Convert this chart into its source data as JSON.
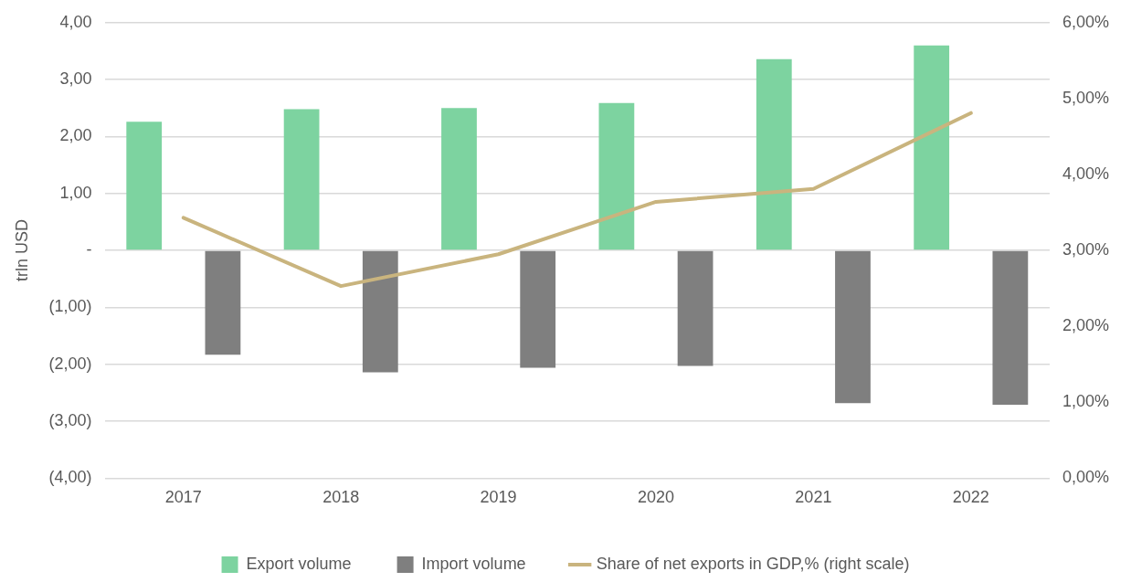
{
  "chart_data": {
    "type": "bar",
    "ylabel": "trln USD",
    "categories": [
      "2017",
      "2018",
      "2019",
      "2020",
      "2021",
      "2022"
    ],
    "series": [
      {
        "name": "Export volume",
        "color": "#7dd3a0",
        "values": [
          2.26,
          2.48,
          2.5,
          2.59,
          3.36,
          3.6
        ]
      },
      {
        "name": "Import volume",
        "color": "#7f7f7f",
        "values": [
          -1.83,
          -2.14,
          -2.06,
          -2.03,
          -2.68,
          -2.71
        ]
      },
      {
        "name": "Share of net exports in GDP,% (right scale)",
        "type": "line",
        "axis": "y2",
        "color": "#c9b47e",
        "values": [
          3.43,
          2.53,
          2.95,
          3.64,
          3.81,
          4.81
        ]
      }
    ],
    "ylim": [
      -4,
      4
    ],
    "yticks": [
      {
        "value": -4,
        "label": "(4,00)"
      },
      {
        "value": -3,
        "label": "(3,00)"
      },
      {
        "value": -2,
        "label": "(2,00)"
      },
      {
        "value": -1,
        "label": "(1,00)"
      },
      {
        "value": 0,
        "label": "-"
      },
      {
        "value": 1,
        "label": "1,00"
      },
      {
        "value": 2,
        "label": "2,00"
      },
      {
        "value": 3,
        "label": "3,00"
      },
      {
        "value": 4,
        "label": "4,00"
      }
    ],
    "y2lim": [
      0,
      6
    ],
    "y2ticks": [
      {
        "value": 0,
        "label": "0,00%"
      },
      {
        "value": 1,
        "label": "1,00%"
      },
      {
        "value": 2,
        "label": "2,00%"
      },
      {
        "value": 3,
        "label": "3,00%"
      },
      {
        "value": 4,
        "label": "4,00%"
      },
      {
        "value": 5,
        "label": "5,00%"
      },
      {
        "value": 6,
        "label": "6,00%"
      }
    ],
    "grid": "y",
    "legend": "bottom",
    "marker": "none"
  }
}
